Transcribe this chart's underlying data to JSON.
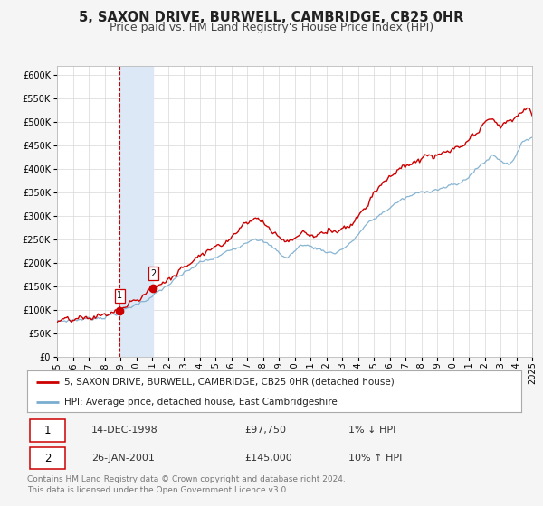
{
  "title": "5, SAXON DRIVE, BURWELL, CAMBRIDGE, CB25 0HR",
  "subtitle": "Price paid vs. HM Land Registry's House Price Index (HPI)",
  "red_label": "5, SAXON DRIVE, BURWELL, CAMBRIDGE, CB25 0HR (detached house)",
  "blue_label": "HPI: Average price, detached house, East Cambridgeshire",
  "footnote": "Contains HM Land Registry data © Crown copyright and database right 2024.\nThis data is licensed under the Open Government Licence v3.0.",
  "sale1_label": "1",
  "sale1_date": "14-DEC-1998",
  "sale1_price": "£97,750",
  "sale1_hpi": "1% ↓ HPI",
  "sale2_label": "2",
  "sale2_date": "26-JAN-2001",
  "sale2_price": "£145,000",
  "sale2_hpi": "10% ↑ HPI",
  "sale1_x": 1998.96,
  "sale1_y": 97750,
  "sale2_x": 2001.07,
  "sale2_y": 145000,
  "shaded_x1": 1998.96,
  "shaded_x2": 2001.07,
  "vline_x": 1998.96,
  "ylim_min": 0,
  "ylim_max": 620000,
  "xlim_min": 1995,
  "xlim_max": 2025,
  "yticks": [
    0,
    50000,
    100000,
    150000,
    200000,
    250000,
    300000,
    350000,
    400000,
    450000,
    500000,
    550000,
    600000
  ],
  "background_color": "#f5f5f5",
  "plot_bg_color": "#ffffff",
  "grid_color": "#d8d8d8",
  "red_color": "#cc0000",
  "blue_color": "#7aadcf",
  "shade_color": "#dce8f5",
  "vline_color": "#cc0000",
  "title_fontsize": 10.5,
  "subtitle_fontsize": 9,
  "tick_fontsize": 7,
  "legend_fontsize": 7.5,
  "footnote_fontsize": 6.5
}
